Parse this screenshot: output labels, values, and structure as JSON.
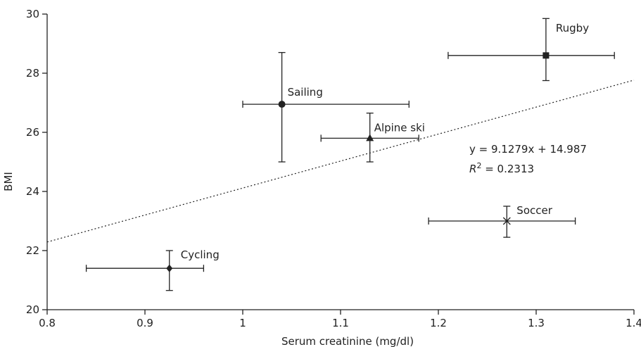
{
  "chart_data": {
    "type": "scatter",
    "xlabel": "Serum creatinine (mg/dl)",
    "ylabel": "BMI",
    "xlim": [
      0.8,
      1.4
    ],
    "ylim": [
      20,
      30
    ],
    "x_ticks": [
      0.8,
      0.9,
      1,
      1.1,
      1.2,
      1.3,
      1.4
    ],
    "y_ticks": [
      20,
      22,
      24,
      26,
      28,
      30
    ],
    "x_tick_labels": [
      "0.8",
      "0.9",
      "1",
      "1.1",
      "1.2",
      "1.3",
      "1.4"
    ],
    "y_tick_labels": [
      "20",
      "22",
      "24",
      "26",
      "28",
      "30"
    ],
    "grid": false,
    "points": [
      {
        "label": "Rugby",
        "x": 1.31,
        "y": 28.6,
        "x_err": [
          1.21,
          1.38
        ],
        "y_err": [
          27.75,
          29.85
        ],
        "marker": "square"
      },
      {
        "label": "Sailing",
        "x": 1.04,
        "y": 26.95,
        "x_err": [
          1.0,
          1.17
        ],
        "y_err": [
          25.0,
          28.7
        ],
        "marker": "circle"
      },
      {
        "label": "Alpine ski",
        "x": 1.13,
        "y": 25.8,
        "x_err": [
          1.08,
          1.18
        ],
        "y_err": [
          25.0,
          26.65
        ],
        "marker": "triangle"
      },
      {
        "label": "Soccer",
        "x": 1.27,
        "y": 23.0,
        "x_err": [
          1.19,
          1.34
        ],
        "y_err": [
          22.45,
          23.5
        ],
        "marker": "x"
      },
      {
        "label": "Cycling",
        "x": 0.925,
        "y": 21.4,
        "x_err": [
          0.84,
          0.96
        ],
        "y_err": [
          20.65,
          22.0
        ],
        "marker": "diamond"
      }
    ],
    "trendline": {
      "slope": 9.1279,
      "intercept": 14.987,
      "style": "dotted"
    },
    "annotations": {
      "equation": "y = 9.1279x + 14.987",
      "r_squared_prefix": "R",
      "r_squared_sup": "2",
      "r_squared_value": " = 0.2313"
    }
  }
}
